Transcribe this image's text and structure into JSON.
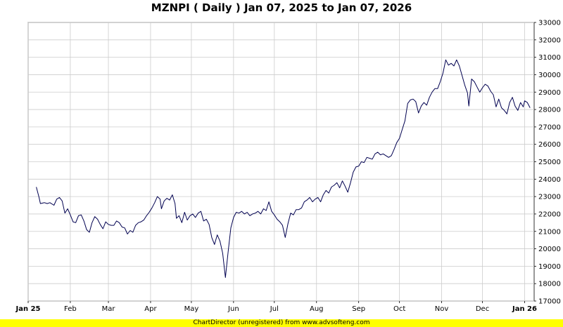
{
  "chart_data": {
    "type": "line",
    "title": "MZNPI ( Daily ) Jan 07, 2025 to Jan 07, 2026",
    "xlabel": "",
    "ylabel": "",
    "grid": true,
    "y_axis_side": "right",
    "ylim": [
      17000,
      33000
    ],
    "y_ticks": [
      "17000",
      "18000",
      "19000",
      "20000",
      "21000",
      "22000",
      "23000",
      "24000",
      "25000",
      "26000",
      "27000",
      "28000",
      "29000",
      "30000",
      "31000",
      "32000",
      "33000"
    ],
    "x_tick_labels": [
      {
        "label": "Jan 25",
        "date": "2025-01-01",
        "bold": true
      },
      {
        "label": "Feb",
        "date": "2025-02-01",
        "bold": false
      },
      {
        "label": "Mar",
        "date": "2025-03-01",
        "bold": false
      },
      {
        "label": "Apr",
        "date": "2025-04-01",
        "bold": false
      },
      {
        "label": "May",
        "date": "2025-05-01",
        "bold": false
      },
      {
        "label": "Jun",
        "date": "2025-06-01",
        "bold": false
      },
      {
        "label": "Jul",
        "date": "2025-07-01",
        "bold": false
      },
      {
        "label": "Aug",
        "date": "2025-08-01",
        "bold": false
      },
      {
        "label": "Sep",
        "date": "2025-09-01",
        "bold": false
      },
      {
        "label": "Oct",
        "date": "2025-10-01",
        "bold": false
      },
      {
        "label": "Nov",
        "date": "2025-11-01",
        "bold": false
      },
      {
        "label": "Dec",
        "date": "2025-12-01",
        "bold": false
      },
      {
        "label": "Jan 26",
        "date": "2026-01-01",
        "bold": true
      }
    ],
    "series": [
      {
        "color": "#000050",
        "points": [
          [
            "2025-01-07",
            23550
          ],
          [
            "2025-01-09",
            22950
          ],
          [
            "2025-01-10",
            22600
          ],
          [
            "2025-01-13",
            22650
          ],
          [
            "2025-01-15",
            22600
          ],
          [
            "2025-01-17",
            22650
          ],
          [
            "2025-01-20",
            22500
          ],
          [
            "2025-01-22",
            22850
          ],
          [
            "2025-01-24",
            22950
          ],
          [
            "2025-01-26",
            22750
          ],
          [
            "2025-01-28",
            22050
          ],
          [
            "2025-01-30",
            22300
          ],
          [
            "2025-02-01",
            21950
          ],
          [
            "2025-02-03",
            21550
          ],
          [
            "2025-02-05",
            21500
          ],
          [
            "2025-02-07",
            21900
          ],
          [
            "2025-02-09",
            21950
          ],
          [
            "2025-02-11",
            21600
          ],
          [
            "2025-02-13",
            21100
          ],
          [
            "2025-02-15",
            20950
          ],
          [
            "2025-02-17",
            21500
          ],
          [
            "2025-02-19",
            21850
          ],
          [
            "2025-02-21",
            21700
          ],
          [
            "2025-02-23",
            21400
          ],
          [
            "2025-02-25",
            21150
          ],
          [
            "2025-02-27",
            21550
          ],
          [
            "2025-03-01",
            21400
          ],
          [
            "2025-03-03",
            21350
          ],
          [
            "2025-03-05",
            21350
          ],
          [
            "2025-03-07",
            21600
          ],
          [
            "2025-03-09",
            21500
          ],
          [
            "2025-03-11",
            21250
          ],
          [
            "2025-03-13",
            21200
          ],
          [
            "2025-03-15",
            20850
          ],
          [
            "2025-03-17",
            21050
          ],
          [
            "2025-03-19",
            20950
          ],
          [
            "2025-03-21",
            21350
          ],
          [
            "2025-03-23",
            21500
          ],
          [
            "2025-03-25",
            21550
          ],
          [
            "2025-03-27",
            21650
          ],
          [
            "2025-03-29",
            21900
          ],
          [
            "2025-03-31",
            22100
          ],
          [
            "2025-04-02",
            22350
          ],
          [
            "2025-04-04",
            22650
          ],
          [
            "2025-04-06",
            23000
          ],
          [
            "2025-04-08",
            22850
          ],
          [
            "2025-04-09",
            22300
          ],
          [
            "2025-04-11",
            22750
          ],
          [
            "2025-04-13",
            22900
          ],
          [
            "2025-04-15",
            22800
          ],
          [
            "2025-04-17",
            23100
          ],
          [
            "2025-04-19",
            22600
          ],
          [
            "2025-04-20",
            21750
          ],
          [
            "2025-04-22",
            21900
          ],
          [
            "2025-04-24",
            21500
          ],
          [
            "2025-04-26",
            22100
          ],
          [
            "2025-04-28",
            21650
          ],
          [
            "2025-04-30",
            21900
          ],
          [
            "2025-05-02",
            22000
          ],
          [
            "2025-05-04",
            21800
          ],
          [
            "2025-05-06",
            22050
          ],
          [
            "2025-05-08",
            22150
          ],
          [
            "2025-05-10",
            21600
          ],
          [
            "2025-05-12",
            21700
          ],
          [
            "2025-05-14",
            21400
          ],
          [
            "2025-05-16",
            20650
          ],
          [
            "2025-05-18",
            20250
          ],
          [
            "2025-05-20",
            20800
          ],
          [
            "2025-05-22",
            20450
          ],
          [
            "2025-05-24",
            19750
          ],
          [
            "2025-05-26",
            18350
          ],
          [
            "2025-05-28",
            19800
          ],
          [
            "2025-05-30",
            21200
          ],
          [
            "2025-06-01",
            21800
          ],
          [
            "2025-06-03",
            22100
          ],
          [
            "2025-06-05",
            22050
          ],
          [
            "2025-06-07",
            22150
          ],
          [
            "2025-06-09",
            22000
          ],
          [
            "2025-06-11",
            22100
          ],
          [
            "2025-06-13",
            21900
          ],
          [
            "2025-06-15",
            22000
          ],
          [
            "2025-06-17",
            22050
          ],
          [
            "2025-06-19",
            22150
          ],
          [
            "2025-06-21",
            22000
          ],
          [
            "2025-06-23",
            22300
          ],
          [
            "2025-06-25",
            22200
          ],
          [
            "2025-06-27",
            22700
          ],
          [
            "2025-06-29",
            22150
          ],
          [
            "2025-07-01",
            21950
          ],
          [
            "2025-07-03",
            21700
          ],
          [
            "2025-07-05",
            21550
          ],
          [
            "2025-07-07",
            21350
          ],
          [
            "2025-07-09",
            20650
          ],
          [
            "2025-07-11",
            21450
          ],
          [
            "2025-07-13",
            22050
          ],
          [
            "2025-07-15",
            21950
          ],
          [
            "2025-07-17",
            22250
          ],
          [
            "2025-07-19",
            22250
          ],
          [
            "2025-07-21",
            22350
          ],
          [
            "2025-07-23",
            22700
          ],
          [
            "2025-07-25",
            22800
          ],
          [
            "2025-07-27",
            22950
          ],
          [
            "2025-07-29",
            22700
          ],
          [
            "2025-07-31",
            22850
          ],
          [
            "2025-08-02",
            22950
          ],
          [
            "2025-08-04",
            22700
          ],
          [
            "2025-08-06",
            23100
          ],
          [
            "2025-08-08",
            23350
          ],
          [
            "2025-08-10",
            23200
          ],
          [
            "2025-08-12",
            23550
          ],
          [
            "2025-08-14",
            23650
          ],
          [
            "2025-08-16",
            23800
          ],
          [
            "2025-08-18",
            23500
          ],
          [
            "2025-08-20",
            23900
          ],
          [
            "2025-08-22",
            23600
          ],
          [
            "2025-08-24",
            23250
          ],
          [
            "2025-08-26",
            23800
          ],
          [
            "2025-08-28",
            24400
          ],
          [
            "2025-08-30",
            24700
          ],
          [
            "2025-09-01",
            24750
          ],
          [
            "2025-09-03",
            25000
          ],
          [
            "2025-09-05",
            24950
          ],
          [
            "2025-09-07",
            25250
          ],
          [
            "2025-09-09",
            25200
          ],
          [
            "2025-09-11",
            25150
          ],
          [
            "2025-09-13",
            25450
          ],
          [
            "2025-09-15",
            25550
          ],
          [
            "2025-09-17",
            25400
          ],
          [
            "2025-09-19",
            25450
          ],
          [
            "2025-09-21",
            25350
          ],
          [
            "2025-09-23",
            25250
          ],
          [
            "2025-09-25",
            25350
          ],
          [
            "2025-09-27",
            25700
          ],
          [
            "2025-09-29",
            26100
          ],
          [
            "2025-10-01",
            26350
          ],
          [
            "2025-10-03",
            26850
          ],
          [
            "2025-10-05",
            27350
          ],
          [
            "2025-10-07",
            28350
          ],
          [
            "2025-10-09",
            28550
          ],
          [
            "2025-10-11",
            28600
          ],
          [
            "2025-10-13",
            28450
          ],
          [
            "2025-10-15",
            27800
          ],
          [
            "2025-10-17",
            28200
          ],
          [
            "2025-10-19",
            28400
          ],
          [
            "2025-10-21",
            28250
          ],
          [
            "2025-10-23",
            28700
          ],
          [
            "2025-10-25",
            29000
          ],
          [
            "2025-10-27",
            29200
          ],
          [
            "2025-10-29",
            29200
          ],
          [
            "2025-10-31",
            29600
          ],
          [
            "2025-11-02",
            30100
          ],
          [
            "2025-11-04",
            30850
          ],
          [
            "2025-11-06",
            30550
          ],
          [
            "2025-11-08",
            30650
          ],
          [
            "2025-11-10",
            30500
          ],
          [
            "2025-11-12",
            30850
          ],
          [
            "2025-11-14",
            30500
          ],
          [
            "2025-11-16",
            29950
          ],
          [
            "2025-11-18",
            29400
          ],
          [
            "2025-11-20",
            28950
          ],
          [
            "2025-11-21",
            28200
          ],
          [
            "2025-11-23",
            29750
          ],
          [
            "2025-11-25",
            29600
          ],
          [
            "2025-11-27",
            29300
          ],
          [
            "2025-11-29",
            29000
          ],
          [
            "2025-12-01",
            29250
          ],
          [
            "2025-12-03",
            29450
          ],
          [
            "2025-12-05",
            29350
          ],
          [
            "2025-12-07",
            29050
          ],
          [
            "2025-12-09",
            28850
          ],
          [
            "2025-12-11",
            28150
          ],
          [
            "2025-12-13",
            28600
          ],
          [
            "2025-12-15",
            28100
          ],
          [
            "2025-12-17",
            27950
          ],
          [
            "2025-12-19",
            27750
          ],
          [
            "2025-12-21",
            28400
          ],
          [
            "2025-12-23",
            28700
          ],
          [
            "2025-12-25",
            28200
          ],
          [
            "2025-12-27",
            27950
          ],
          [
            "2025-12-29",
            28400
          ],
          [
            "2025-12-31",
            28150
          ],
          [
            "2026-01-01",
            28500
          ],
          [
            "2026-01-03",
            28400
          ],
          [
            "2026-01-05",
            28100
          ]
        ]
      }
    ]
  },
  "footer": {
    "credit": "ChartDirector (unregistered) from www.advsofteng.com",
    "background": "#ffff00"
  }
}
